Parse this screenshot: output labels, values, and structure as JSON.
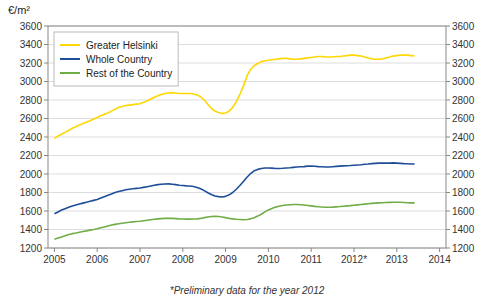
{
  "chart_data": {
    "type": "line",
    "ylabel": "€/m²",
    "annotations": [
      "*Preliminary data for the year 2012"
    ],
    "x": [
      2005,
      2005.083333,
      2005.166667,
      2005.25,
      2005.333333,
      2005.416667,
      2005.5,
      2005.583333,
      2005.666667,
      2005.75,
      2005.833333,
      2005.916667,
      2006,
      2006.083333,
      2006.166667,
      2006.25,
      2006.333333,
      2006.416667,
      2006.5,
      2006.583333,
      2006.666667,
      2006.75,
      2006.833333,
      2006.916667,
      2007,
      2007.083333,
      2007.166667,
      2007.25,
      2007.333333,
      2007.416667,
      2007.5,
      2007.583333,
      2007.666667,
      2007.75,
      2007.833333,
      2007.916667,
      2008,
      2008.083333,
      2008.166667,
      2008.25,
      2008.333333,
      2008.416667,
      2008.5,
      2008.583333,
      2008.666667,
      2008.75,
      2008.833333,
      2008.916667,
      2009,
      2009.083333,
      2009.166667,
      2009.25,
      2009.333333,
      2009.416667,
      2009.5,
      2009.583333,
      2009.666667,
      2009.75,
      2009.833333,
      2009.916667,
      2010,
      2010.083333,
      2010.166667,
      2010.25,
      2010.333333,
      2010.416667,
      2010.5,
      2010.583333,
      2010.666667,
      2010.75,
      2010.833333,
      2010.916667,
      2011,
      2011.083333,
      2011.166667,
      2011.25,
      2011.333333,
      2011.416667,
      2011.5,
      2011.583333,
      2011.666667,
      2011.75,
      2011.833333,
      2011.916667,
      2012,
      2012.083333,
      2012.166667,
      2012.25,
      2012.333333,
      2012.416667,
      2012.5,
      2012.583333,
      2012.666667,
      2012.75,
      2012.833333,
      2012.916667,
      2013,
      2013.083333,
      2013.166667,
      2013.25,
      2013.333333,
      2013.416667
    ],
    "series": [
      {
        "name": "Greater Helsinki",
        "color": "#FFD700",
        "values": [
          2385,
          2410,
          2430,
          2450,
          2470,
          2495,
          2510,
          2530,
          2545,
          2560,
          2575,
          2595,
          2610,
          2630,
          2645,
          2660,
          2680,
          2700,
          2720,
          2730,
          2740,
          2745,
          2750,
          2755,
          2760,
          2775,
          2790,
          2810,
          2830,
          2845,
          2860,
          2870,
          2875,
          2880,
          2875,
          2870,
          2870,
          2870,
          2870,
          2865,
          2855,
          2835,
          2800,
          2755,
          2710,
          2680,
          2665,
          2655,
          2660,
          2680,
          2720,
          2780,
          2860,
          2950,
          3060,
          3130,
          3170,
          3195,
          3215,
          3225,
          3230,
          3235,
          3240,
          3245,
          3250,
          3250,
          3245,
          3240,
          3240,
          3245,
          3250,
          3255,
          3260,
          3265,
          3270,
          3270,
          3265,
          3265,
          3265,
          3270,
          3270,
          3275,
          3280,
          3285,
          3285,
          3280,
          3275,
          3265,
          3255,
          3245,
          3240,
          3240,
          3245,
          3255,
          3265,
          3275,
          3280,
          3285,
          3285,
          3285,
          3280,
          3275
        ]
      },
      {
        "name": "Whole Country",
        "color": "#1F4E99",
        "values": [
          1570,
          1590,
          1610,
          1625,
          1640,
          1655,
          1665,
          1675,
          1685,
          1695,
          1705,
          1715,
          1725,
          1740,
          1755,
          1770,
          1785,
          1800,
          1810,
          1820,
          1830,
          1835,
          1840,
          1845,
          1848,
          1855,
          1862,
          1870,
          1878,
          1885,
          1890,
          1892,
          1893,
          1890,
          1885,
          1878,
          1875,
          1872,
          1870,
          1865,
          1855,
          1840,
          1820,
          1798,
          1778,
          1762,
          1755,
          1752,
          1758,
          1775,
          1800,
          1835,
          1875,
          1920,
          1965,
          2005,
          2035,
          2050,
          2060,
          2065,
          2065,
          2063,
          2060,
          2060,
          2062,
          2065,
          2068,
          2072,
          2075,
          2078,
          2080,
          2085,
          2085,
          2083,
          2080,
          2078,
          2075,
          2075,
          2078,
          2082,
          2085,
          2088,
          2090,
          2092,
          2095,
          2098,
          2100,
          2105,
          2108,
          2112,
          2115,
          2118,
          2118,
          2118,
          2118,
          2120,
          2118,
          2115,
          2112,
          2110,
          2108,
          2108
        ]
      },
      {
        "name": "Rest of the Country",
        "color": "#70AD47",
        "values": [
          1295,
          1308,
          1320,
          1333,
          1345,
          1355,
          1362,
          1370,
          1378,
          1385,
          1393,
          1400,
          1408,
          1418,
          1428,
          1438,
          1448,
          1455,
          1462,
          1468,
          1473,
          1478,
          1482,
          1486,
          1490,
          1495,
          1500,
          1505,
          1510,
          1515,
          1518,
          1520,
          1521,
          1520,
          1518,
          1515,
          1513,
          1512,
          1512,
          1513,
          1515,
          1520,
          1528,
          1535,
          1540,
          1542,
          1540,
          1535,
          1528,
          1520,
          1515,
          1510,
          1508,
          1505,
          1508,
          1515,
          1528,
          1545,
          1565,
          1590,
          1612,
          1628,
          1642,
          1652,
          1660,
          1665,
          1668,
          1670,
          1670,
          1668,
          1665,
          1660,
          1655,
          1650,
          1646,
          1643,
          1640,
          1640,
          1642,
          1645,
          1648,
          1652,
          1655,
          1658,
          1662,
          1666,
          1670,
          1674,
          1678,
          1682,
          1685,
          1688,
          1690,
          1692,
          1693,
          1694,
          1695,
          1694,
          1692,
          1690,
          1688,
          1688
        ]
      }
    ],
    "xlim": [
      2004.85,
      2014.15
    ],
    "xticks": [
      2005,
      2006,
      2007,
      2008,
      2009,
      2010,
      2011,
      {
        "value": 2012,
        "label": "2012*"
      },
      2013,
      2014
    ],
    "ylim": [
      1200,
      3600
    ],
    "yticks": [
      1200,
      1400,
      1600,
      1800,
      2000,
      2200,
      2400,
      2600,
      2800,
      3000,
      3200,
      3400,
      3600
    ],
    "y2lim": [
      1200,
      3600
    ],
    "y2ticks": [
      1200,
      1400,
      1600,
      1800,
      2000,
      2200,
      2400,
      2600,
      2800,
      3000,
      3200,
      3400,
      3600
    ],
    "grid": true,
    "legend": "upper left"
  }
}
